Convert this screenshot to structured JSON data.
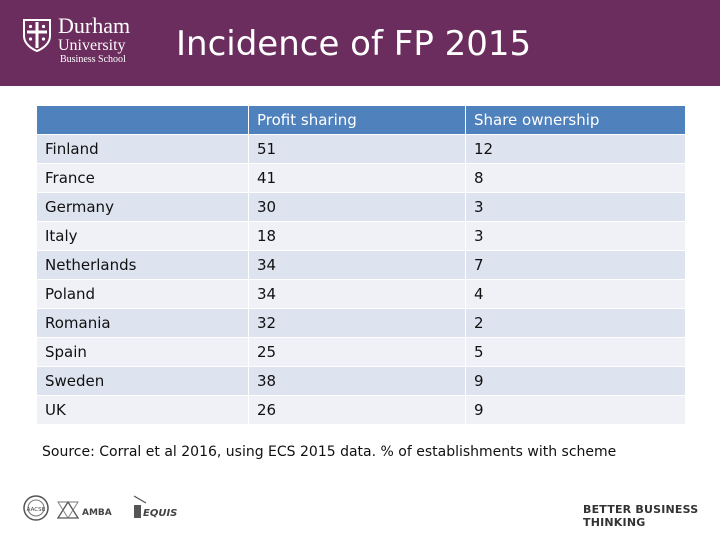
{
  "header": {
    "logo": {
      "name": "Durham",
      "subname": "University",
      "school": "Business School"
    },
    "title": "Incidence of FP 2015"
  },
  "table": {
    "columns": [
      "",
      "Profit sharing",
      "Share ownership"
    ],
    "rows": [
      {
        "country": "Finland",
        "profit_sharing": "51",
        "share_ownership": "12"
      },
      {
        "country": "France",
        "profit_sharing": "41",
        "share_ownership": "8"
      },
      {
        "country": "Germany",
        "profit_sharing": "30",
        "share_ownership": "3"
      },
      {
        "country": "Italy",
        "profit_sharing": "18",
        "share_ownership": "3"
      },
      {
        "country": "Netherlands",
        "profit_sharing": "34",
        "share_ownership": "7"
      },
      {
        "country": "Poland",
        "profit_sharing": "34",
        "share_ownership": "4"
      },
      {
        "country": "Romania",
        "profit_sharing": "32",
        "share_ownership": "2"
      },
      {
        "country": "Spain",
        "profit_sharing": "25",
        "share_ownership": "5"
      },
      {
        "country": "Sweden",
        "profit_sharing": "38",
        "share_ownership": "9"
      },
      {
        "country": "UK",
        "profit_sharing": "26",
        "share_ownership": "9"
      }
    ]
  },
  "source_note": "Source: Corral et al 2016, using ECS 2015 data.  % of establishments with scheme",
  "footer": {
    "accreditations": [
      "AACSB",
      "AMBA",
      "EQUIS"
    ],
    "tagline": "BETTER BUSINESS THINKING"
  },
  "colors": {
    "header_bg": "#6b2d5e",
    "table_header": "#4f81bd",
    "row_odd": "#dde3ef",
    "row_even": "#eff1f7"
  }
}
